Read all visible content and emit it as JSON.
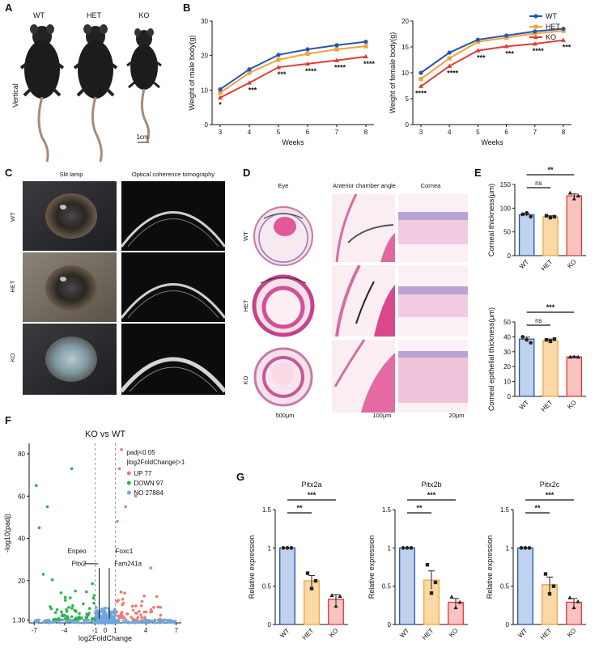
{
  "panels": {
    "A": {
      "letter": "A",
      "genotypes": [
        "WT",
        "HET",
        "KO"
      ],
      "side_label": "Vertical",
      "scale_label": "1cm"
    },
    "B": {
      "letter": "B"
    },
    "C": {
      "letter": "C",
      "col_titles": [
        "Slit lamp",
        "Optical coherence tomography"
      ],
      "row_labels": [
        "WT",
        "HET",
        "KO"
      ]
    },
    "D": {
      "letter": "D",
      "col_titles": [
        "Eye",
        "Anterior chamber angle",
        "Cornea"
      ],
      "row_labels": [
        "WT",
        "HET",
        "KO"
      ],
      "scales": [
        "500μm",
        "100μm",
        "20μm"
      ]
    },
    "E": {
      "letter": "E"
    },
    "F": {
      "letter": "F",
      "genes": [
        "Enpeo",
        "Pitx2",
        "Foxc1",
        "Fam241a"
      ]
    },
    "G": {
      "letter": "G"
    }
  },
  "colors": {
    "WT": "#2b55a8",
    "HET": "#f0a33a",
    "KO": "#e23a37",
    "up": "#f07b70",
    "down": "#2fb44a",
    "no": "#6fa6dc",
    "wt_fill": "#bfd2ee",
    "het_fill": "#fbd9a6",
    "ko_fill": "#f8c4c0"
  },
  "chart_data": [
    {
      "id": "male_weight",
      "type": "line",
      "xlabel": "Weeks",
      "ylabel": "Weight of male body(g)",
      "x": [
        3,
        4,
        5,
        6,
        7,
        8
      ],
      "ylim": [
        0,
        30
      ],
      "yticks": [
        0,
        10,
        20,
        30
      ],
      "series": [
        {
          "name": "WT",
          "values": [
            10.2,
            16.0,
            20.2,
            21.8,
            23.0,
            24.0
          ]
        },
        {
          "name": "HET",
          "values": [
            9.2,
            15.0,
            18.8,
            20.5,
            21.8,
            22.7
          ]
        },
        {
          "name": "KO",
          "values": [
            7.8,
            12.1,
            16.6,
            17.6,
            18.6,
            19.7
          ]
        }
      ],
      "significance": [
        "*",
        "***",
        "***",
        "****",
        "****",
        "****"
      ]
    },
    {
      "id": "female_weight",
      "type": "line",
      "xlabel": "Weeks",
      "ylabel": "Weight of female body(g)",
      "x": [
        3,
        4,
        5,
        6,
        7,
        8
      ],
      "ylim": [
        0,
        20
      ],
      "yticks": [
        0,
        5,
        10,
        15,
        20
      ],
      "legend": "top-right",
      "series": [
        {
          "name": "WT",
          "values": [
            10.0,
            13.9,
            16.4,
            17.2,
            18.0,
            18.5
          ]
        },
        {
          "name": "HET",
          "values": [
            8.8,
            12.8,
            16.0,
            16.8,
            17.6,
            18.1
          ]
        },
        {
          "name": "KO",
          "values": [
            7.4,
            11.3,
            14.3,
            15.1,
            15.6,
            16.3
          ]
        }
      ],
      "significance": [
        "****",
        "****",
        "***",
        "***",
        "****",
        "***"
      ]
    },
    {
      "id": "corneal_thickness",
      "type": "bar",
      "ylabel": "Corneal thickness(μm)",
      "categories": [
        "WT",
        "HET",
        "KO"
      ],
      "values": [
        86,
        82,
        126
      ],
      "errors": [
        3,
        2,
        4
      ],
      "ylim": [
        0,
        150
      ],
      "yticks": [
        0,
        50,
        100,
        150
      ],
      "points": [
        [
          87,
          90,
          82
        ],
        [
          84,
          80,
          82
        ],
        [
          132,
          120,
          126
        ]
      ],
      "comparisons": [
        {
          "pair": [
            "WT",
            "HET"
          ],
          "label": "ns"
        },
        {
          "pair": [
            "WT",
            "KO"
          ],
          "label": "**"
        }
      ]
    },
    {
      "id": "corneal_epithelial",
      "type": "bar",
      "ylabel": "Corneal epithelial thickness(μm)",
      "categories": [
        "WT",
        "HET",
        "KO"
      ],
      "values": [
        38.5,
        37.5,
        26.5
      ],
      "errors": [
        1.3,
        1.0,
        0.3
      ],
      "ylim": [
        0,
        50
      ],
      "yticks": [
        0,
        10,
        20,
        30,
        40,
        50
      ],
      "points": [
        [
          40,
          38,
          36
        ],
        [
          38,
          37,
          38.5
        ],
        [
          26.4,
          26.6,
          26.4
        ]
      ],
      "comparisons": [
        {
          "pair": [
            "WT",
            "HET"
          ],
          "label": "ns"
        },
        {
          "pair": [
            "WT",
            "KO"
          ],
          "label": "***"
        }
      ]
    },
    {
      "id": "volcano",
      "type": "scatter",
      "title": "KO vs WT",
      "xlabel": "log2FoldChange",
      "ylabel": "-log10(padj)",
      "xlim": [
        -7.5,
        7.5
      ],
      "xticks": [
        -7,
        -4,
        -1,
        0,
        1,
        4,
        7
      ],
      "yticks": [
        1.3,
        20,
        40,
        60,
        80
      ],
      "ylim": [
        0,
        85
      ],
      "legend_title": [
        "padj<0.05",
        "|log2FoldChange|>1"
      ],
      "legend": [
        {
          "name": "UP",
          "count": "77"
        },
        {
          "name": "DOWN",
          "count": "97"
        },
        {
          "name": "NO",
          "count": "27884"
        }
      ]
    },
    {
      "id": "pitx2a",
      "type": "bar",
      "title": "Pitx2a",
      "ylabel": "Relative expression",
      "categories": [
        "WT",
        "HET",
        "KO"
      ],
      "values": [
        1.0,
        0.57,
        0.33
      ],
      "errors": [
        0.0,
        0.07,
        0.06
      ],
      "ylim": [
        0,
        1.5
      ],
      "yticks": [
        0.0,
        0.5,
        1.0,
        1.5
      ],
      "points": [
        [
          1,
          1,
          1
        ],
        [
          0.67,
          0.47,
          0.57
        ],
        [
          0.38,
          0.24,
          0.37
        ]
      ],
      "comparisons": [
        {
          "pair": [
            "WT",
            "HET"
          ],
          "label": "**"
        },
        {
          "pair": [
            "WT",
            "KO"
          ],
          "label": "***"
        }
      ]
    },
    {
      "id": "pitx2b",
      "type": "bar",
      "title": "Pitx2b",
      "ylabel": "Relative expression",
      "categories": [
        "WT",
        "HET",
        "KO"
      ],
      "values": [
        1.0,
        0.58,
        0.29
      ],
      "errors": [
        0.0,
        0.12,
        0.05
      ],
      "ylim": [
        0,
        1.5
      ],
      "yticks": [
        0.0,
        0.5,
        1.0,
        1.5
      ],
      "points": [
        [
          1,
          1,
          1
        ],
        [
          0.78,
          0.41,
          0.55
        ],
        [
          0.36,
          0.22,
          0.29
        ]
      ],
      "comparisons": [
        {
          "pair": [
            "WT",
            "HET"
          ],
          "label": "**"
        },
        {
          "pair": [
            "WT",
            "KO"
          ],
          "label": "***"
        }
      ]
    },
    {
      "id": "pitx2c",
      "type": "bar",
      "title": "Pitx2c",
      "ylabel": "Relative expression",
      "categories": [
        "WT",
        "HET",
        "KO"
      ],
      "values": [
        1.0,
        0.52,
        0.29
      ],
      "errors": [
        0.0,
        0.1,
        0.05
      ],
      "ylim": [
        0,
        1.5
      ],
      "yticks": [
        0.0,
        0.5,
        1.0,
        1.5
      ],
      "points": [
        [
          1,
          1,
          1
        ],
        [
          0.66,
          0.4,
          0.5
        ],
        [
          0.35,
          0.22,
          0.3
        ]
      ],
      "comparisons": [
        {
          "pair": [
            "WT",
            "HET"
          ],
          "label": "**"
        },
        {
          "pair": [
            "WT",
            "KO"
          ],
          "label": "***"
        }
      ]
    }
  ]
}
